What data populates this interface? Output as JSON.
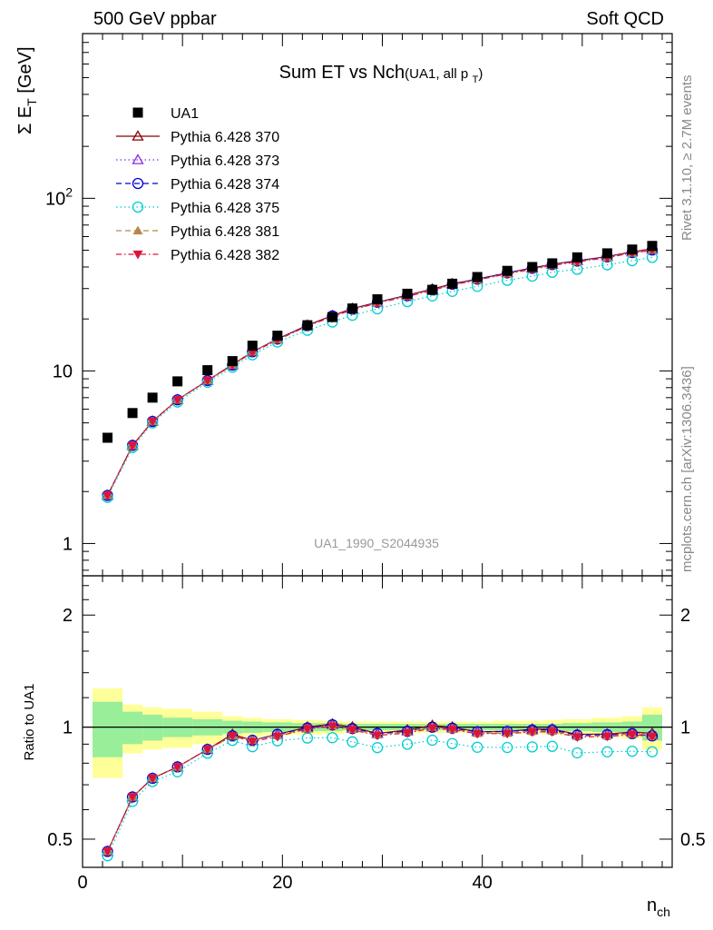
{
  "header": {
    "left": "500 GeV ppbar",
    "right": "Soft QCD"
  },
  "side": {
    "rivet": "Rivet 3.1.10, ≥ 2.7M events",
    "mcplots": "mcplots.cern.ch [arXiv:1306.3436]"
  },
  "chart_data": {
    "type": "scatter",
    "title": "Sum ET vs Nch",
    "subtitle": "(UA1, all p_T)",
    "watermark": "UA1_1990_S2044935",
    "xlabel": "n_ch",
    "ylabel": "Σ E_T [GeV]",
    "ratio_ylabel": "Ratio to UA1",
    "xlim": [
      0,
      59
    ],
    "ylim": [
      0.65,
      900
    ],
    "yscale": "log",
    "ratio_ylim": [
      0.42,
      2.55
    ],
    "ratio_yscale": "log",
    "x_ticks": [
      0,
      20,
      40
    ],
    "y_tick_labels": [
      "1",
      "10",
      "10^2"
    ],
    "ratio_tick_labels": [
      "0.5",
      "1",
      "2"
    ],
    "legend_position": "top-left",
    "x": [
      2.5,
      5,
      7,
      9.5,
      12.5,
      15,
      17,
      19.5,
      22.5,
      25,
      27,
      29.5,
      32.5,
      35,
      37,
      39.5,
      42.5,
      45,
      47,
      49.5,
      52.5,
      55,
      57
    ],
    "series": [
      {
        "name": "UA1",
        "color": "#000000",
        "marker": "square-filled",
        "line": "none",
        "values": [
          4.1,
          5.7,
          7.0,
          8.7,
          10.1,
          11.4,
          14.0,
          16.0,
          18.4,
          20.5,
          23.0,
          26.0,
          28.0,
          29.5,
          32.0,
          35.0,
          38.0,
          40.0,
          42.0,
          45.5,
          48.0,
          50.5,
          53.0
        ]
      },
      {
        "name": "Pythia 6.428 370",
        "color": "#8b0000",
        "marker": "triangle-open",
        "line": "solid",
        "values": [
          1.9,
          3.7,
          5.1,
          6.8,
          8.8,
          10.9,
          12.9,
          15.3,
          18.4,
          20.9,
          23.0,
          25.0,
          27.5,
          29.8,
          32.0,
          34.0,
          37.0,
          39.5,
          41.5,
          43.5,
          46.0,
          49.0,
          51.0
        ]
      },
      {
        "name": "Pythia 6.428 373",
        "color": "#8a2be2",
        "marker": "triangle-open",
        "line": "dotted",
        "values": [
          1.9,
          3.7,
          5.1,
          6.8,
          8.8,
          10.8,
          12.9,
          15.3,
          18.3,
          20.8,
          22.8,
          25.0,
          27.3,
          29.5,
          31.8,
          34.0,
          37.0,
          39.3,
          41.5,
          43.5,
          46.0,
          48.8,
          50.5
        ]
      },
      {
        "name": "Pythia 6.428 374",
        "color": "#0000cd",
        "marker": "circle-open",
        "line": "dashed",
        "values": [
          1.9,
          3.7,
          5.1,
          6.8,
          8.8,
          10.8,
          12.9,
          15.3,
          18.3,
          20.8,
          22.8,
          25.0,
          27.3,
          29.5,
          31.8,
          34.0,
          37.0,
          39.3,
          41.3,
          43.3,
          45.8,
          48.5,
          50.2
        ]
      },
      {
        "name": "Pythia 6.428 375",
        "color": "#00ced1",
        "marker": "circle-open",
        "line": "dotted",
        "values": [
          1.85,
          3.6,
          5.0,
          6.6,
          8.6,
          10.5,
          12.4,
          14.7,
          17.2,
          19.2,
          21.0,
          22.9,
          25.2,
          27.2,
          28.9,
          30.9,
          33.5,
          35.4,
          37.3,
          38.8,
          41.2,
          43.5,
          45.5
        ]
      },
      {
        "name": "Pythia 6.428 381",
        "color": "#b8864b",
        "marker": "triangle-filled",
        "line": "dashed",
        "values": [
          1.9,
          3.7,
          5.1,
          6.8,
          8.8,
          10.8,
          12.9,
          15.2,
          18.2,
          20.7,
          22.7,
          24.8,
          27.2,
          29.5,
          31.6,
          33.7,
          36.6,
          39.0,
          41.0,
          43.0,
          45.5,
          48.5,
          50.5
        ]
      },
      {
        "name": "Pythia 6.428 382",
        "color": "#dc143c",
        "marker": "triangle-down-filled",
        "line": "dashdot",
        "values": [
          1.9,
          3.7,
          5.1,
          6.8,
          8.8,
          10.8,
          12.8,
          15.1,
          18.2,
          20.6,
          22.6,
          24.7,
          27.0,
          29.3,
          31.5,
          33.6,
          36.5,
          38.8,
          40.8,
          42.8,
          45.3,
          48.2,
          50.0
        ]
      }
    ],
    "ratio_band": {
      "edges": [
        1,
        4,
        6,
        8,
        11,
        14,
        16,
        18,
        21,
        24,
        26,
        28,
        31,
        34,
        36,
        38,
        41,
        44,
        46,
        48,
        51,
        54,
        56,
        58
      ],
      "inner": [
        0.17,
        0.1,
        0.08,
        0.06,
        0.05,
        0.04,
        0.035,
        0.03,
        0.025,
        0.025,
        0.02,
        0.02,
        0.02,
        0.02,
        0.02,
        0.02,
        0.02,
        0.02,
        0.02,
        0.025,
        0.03,
        0.035,
        0.08
      ],
      "outer": [
        0.27,
        0.15,
        0.13,
        0.12,
        0.1,
        0.07,
        0.06,
        0.05,
        0.045,
        0.04,
        0.035,
        0.035,
        0.035,
        0.035,
        0.035,
        0.035,
        0.04,
        0.04,
        0.045,
        0.05,
        0.06,
        0.07,
        0.13
      ],
      "inner_color": "#99ee99",
      "outer_color": "#ffff99"
    }
  }
}
